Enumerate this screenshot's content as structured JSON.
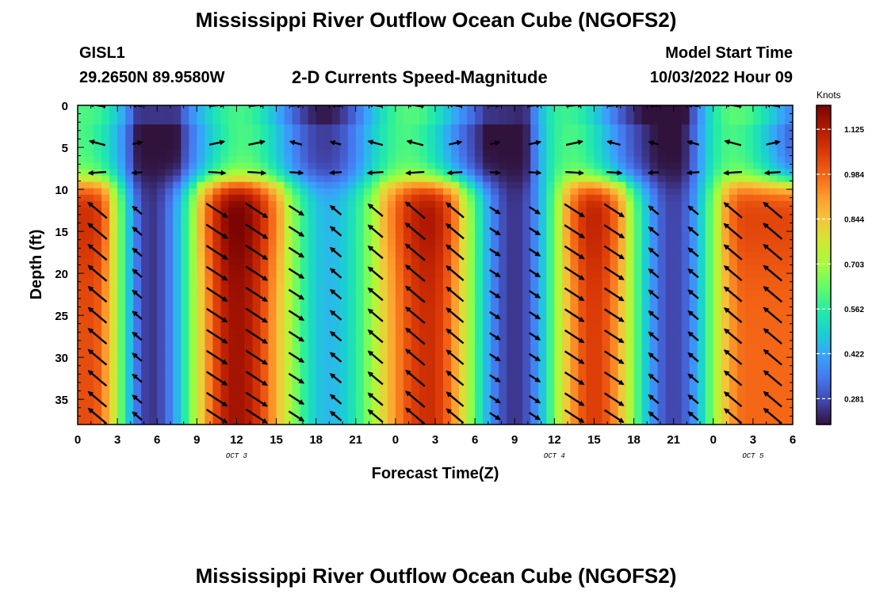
{
  "header": {
    "title": "Mississippi River Outflow Ocean Cube (NGOFS2)",
    "station_id": "GISL1",
    "station_coords": "29.2650N  89.9580W",
    "plot_subtitle": "2-D Currents Speed-Magnitude",
    "model_start_label": "Model Start Time",
    "model_start_value": "10/03/2022 Hour 09"
  },
  "footer": {
    "title": "Mississippi River Outflow Ocean Cube (NGOFS2)"
  },
  "chart_data": {
    "type": "heatmap",
    "title": "2-D Currents Speed-Magnitude",
    "xlabel": "Forecast Time(Z)",
    "ylabel": "Depth (ft)",
    "x_tick_labels": [
      "0",
      "3",
      "6",
      "9",
      "12",
      "15",
      "18",
      "21",
      "0",
      "3",
      "6",
      "9",
      "12",
      "15",
      "18",
      "21",
      "0",
      "3",
      "6"
    ],
    "x_range_hours": [
      0,
      54
    ],
    "day_labels": [
      {
        "text": "OCT 3",
        "hour": 12
      },
      {
        "text": "OCT 4",
        "hour": 36
      },
      {
        "text": "OCT 5",
        "hour": 51
      }
    ],
    "y_tick_labels": [
      "0",
      "5",
      "10",
      "15",
      "20",
      "25",
      "30",
      "35"
    ],
    "ylim": [
      0,
      38
    ],
    "y_inverted": true,
    "colorbar": {
      "unit": "Knots",
      "min": 0.2,
      "max": 1.2,
      "tick_labels": [
        "1.125",
        "0.984",
        "0.844",
        "0.703",
        "0.562",
        "0.422",
        "0.281"
      ],
      "colormap": [
        "#30123b",
        "#4145ab",
        "#4675ed",
        "#39a2fc",
        "#1bcfd4",
        "#24eca6",
        "#61fc6c",
        "#a4fc3b",
        "#d1e834",
        "#f3c63a",
        "#fe9b2d",
        "#f36315",
        "#d93806",
        "#b11901",
        "#7a0402"
      ]
    },
    "speed_field": {
      "description_units": "knots",
      "peak_surface_layer_depth_ft": [
        0,
        8
      ],
      "peak_bottom_layer_depth_ft": [
        10,
        38
      ],
      "bottom_layer_peaks": [
        {
          "hour": 1,
          "speed": 1.02
        },
        {
          "hour": 12,
          "speed": 1.15
        },
        {
          "hour": 26.5,
          "speed": 1.08
        },
        {
          "hour": 39,
          "speed": 1.05
        },
        {
          "hour": 50.5,
          "speed": 0.98
        }
      ],
      "bottom_layer_minima": [
        {
          "hour": 5.5,
          "speed": 0.25
        },
        {
          "hour": 19,
          "speed": 0.45
        },
        {
          "hour": 33,
          "speed": 0.25
        },
        {
          "hour": 45,
          "speed": 0.27
        }
      ]
    },
    "vector_columns_hours": [
      1.5,
      4.5,
      10.5,
      13.5,
      16.5,
      19.5,
      22.5,
      25.5,
      28.5,
      31.5,
      34.5,
      37.5,
      40.5,
      43.5,
      46.5,
      49.5,
      52.5
    ],
    "vector_rows_depth_ft": [
      0,
      4.5,
      8,
      12.5,
      15,
      17.5,
      20,
      22.5,
      25,
      27.5,
      30,
      32.5,
      35,
      37
    ]
  }
}
